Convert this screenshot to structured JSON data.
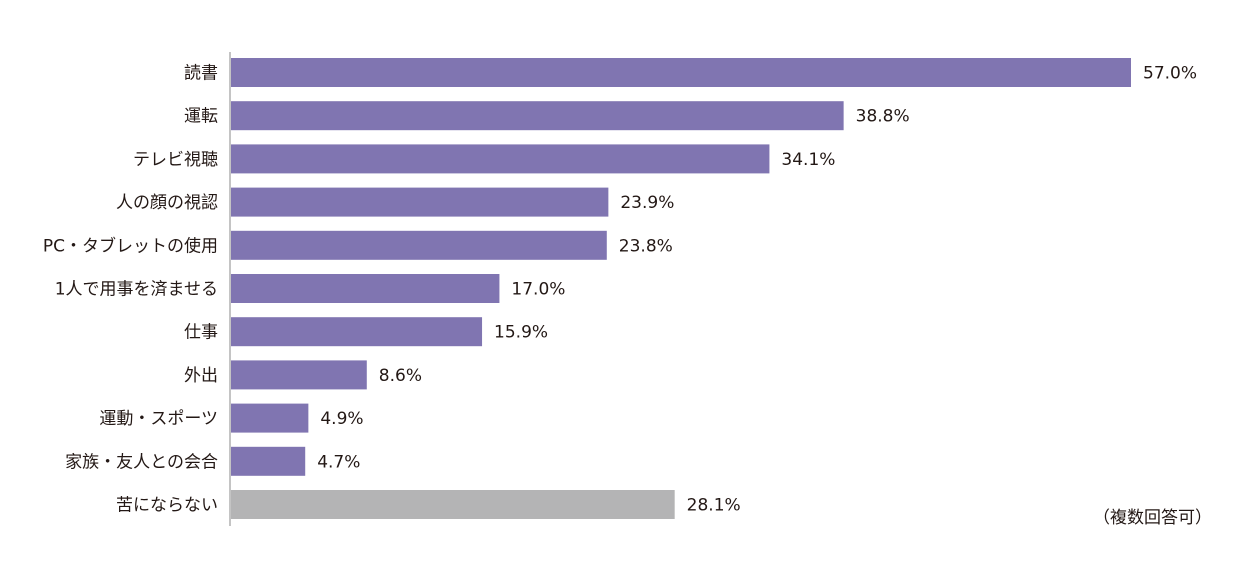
{
  "chart_data": {
    "type": "bar",
    "orientation": "horizontal",
    "categories": [
      "読書",
      "運転",
      "テレビ視聴",
      "人の顔の視認",
      "PC・タブレットの使用",
      "1人で用事を済ませる",
      "仕事",
      "外出",
      "運動・スポーツ",
      "家族・友人との会合",
      "苦にならない"
    ],
    "values": [
      57.0,
      38.8,
      34.1,
      23.9,
      23.8,
      17.0,
      15.9,
      8.6,
      4.9,
      4.7,
      28.1
    ],
    "value_labels": [
      "57.0%",
      "38.8%",
      "34.1%",
      "23.9%",
      "23.8%",
      "17.0%",
      "15.9%",
      "8.6%",
      "4.9%",
      "4.7%",
      "28.1%"
    ],
    "unit": "%",
    "xlim": [
      0,
      57.0
    ],
    "grid": false,
    "legend": "none",
    "colors": {
      "bar": "#8075b1",
      "highlight_bar": "#b4b4b5",
      "axis": "#888888",
      "text": "#231815"
    },
    "highlight_index": 10,
    "note": "（複数回答可）"
  }
}
